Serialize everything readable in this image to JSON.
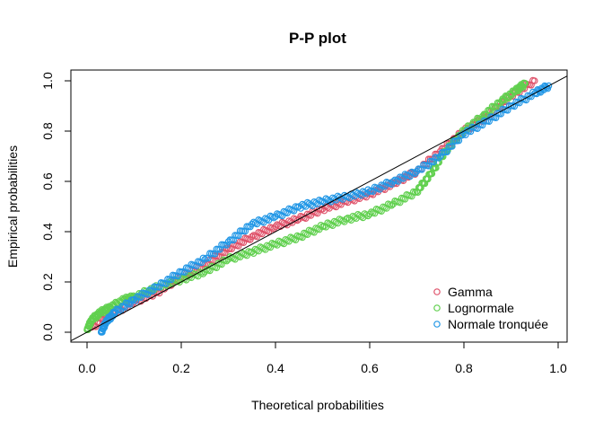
{
  "chart_data": {
    "type": "scatter",
    "title": "P-P plot",
    "xlabel": "Theoretical probabilities",
    "ylabel": "Empirical probabilities",
    "xlim": [
      0,
      1
    ],
    "ylim": [
      0,
      1
    ],
    "xticks": [
      "0.0",
      "0.2",
      "0.4",
      "0.6",
      "0.8",
      "1.0"
    ],
    "yticks": [
      "0.0",
      "0.2",
      "0.4",
      "0.6",
      "0.8",
      "1.0"
    ],
    "grid": false,
    "legend_position": "bottom-right",
    "reference_line": {
      "from": [
        0,
        0
      ],
      "to": [
        1,
        1
      ]
    },
    "series": [
      {
        "name": "Gamma",
        "color": "#DF536B",
        "points": [
          [
            0.01,
            0.02
          ],
          [
            0.05,
            0.07
          ],
          [
            0.1,
            0.12
          ],
          [
            0.15,
            0.16
          ],
          [
            0.2,
            0.22
          ],
          [
            0.25,
            0.27
          ],
          [
            0.3,
            0.33
          ],
          [
            0.35,
            0.38
          ],
          [
            0.4,
            0.42
          ],
          [
            0.45,
            0.45
          ],
          [
            0.5,
            0.49
          ],
          [
            0.55,
            0.52
          ],
          [
            0.6,
            0.55
          ],
          [
            0.65,
            0.59
          ],
          [
            0.7,
            0.64
          ],
          [
            0.75,
            0.72
          ],
          [
            0.8,
            0.8
          ],
          [
            0.85,
            0.86
          ],
          [
            0.9,
            0.94
          ],
          [
            0.95,
            1.0
          ]
        ]
      },
      {
        "name": "Lognormale",
        "color": "#61D04F",
        "points": [
          [
            0.0,
            0.01
          ],
          [
            0.01,
            0.05
          ],
          [
            0.03,
            0.08
          ],
          [
            0.05,
            0.1
          ],
          [
            0.08,
            0.13
          ],
          [
            0.1,
            0.14
          ],
          [
            0.15,
            0.18
          ],
          [
            0.2,
            0.21
          ],
          [
            0.25,
            0.24
          ],
          [
            0.3,
            0.29
          ],
          [
            0.35,
            0.32
          ],
          [
            0.4,
            0.35
          ],
          [
            0.45,
            0.38
          ],
          [
            0.5,
            0.42
          ],
          [
            0.55,
            0.45
          ],
          [
            0.6,
            0.47
          ],
          [
            0.65,
            0.51
          ],
          [
            0.7,
            0.56
          ],
          [
            0.73,
            0.63
          ],
          [
            0.76,
            0.72
          ],
          [
            0.8,
            0.8
          ],
          [
            0.84,
            0.86
          ],
          [
            0.88,
            0.92
          ],
          [
            0.91,
            0.96
          ],
          [
            0.93,
            0.99
          ]
        ]
      },
      {
        "name": "Normale tronquée",
        "color": "#2297E6",
        "points": [
          [
            0.03,
            0.0
          ],
          [
            0.04,
            0.04
          ],
          [
            0.06,
            0.08
          ],
          [
            0.1,
            0.13
          ],
          [
            0.15,
            0.18
          ],
          [
            0.2,
            0.24
          ],
          [
            0.25,
            0.29
          ],
          [
            0.3,
            0.36
          ],
          [
            0.35,
            0.43
          ],
          [
            0.4,
            0.46
          ],
          [
            0.45,
            0.5
          ],
          [
            0.5,
            0.52
          ],
          [
            0.55,
            0.54
          ],
          [
            0.6,
            0.56
          ],
          [
            0.65,
            0.6
          ],
          [
            0.7,
            0.64
          ],
          [
            0.75,
            0.7
          ],
          [
            0.8,
            0.79
          ],
          [
            0.85,
            0.84
          ],
          [
            0.9,
            0.9
          ],
          [
            0.95,
            0.95
          ],
          [
            0.98,
            0.98
          ]
        ]
      }
    ]
  }
}
